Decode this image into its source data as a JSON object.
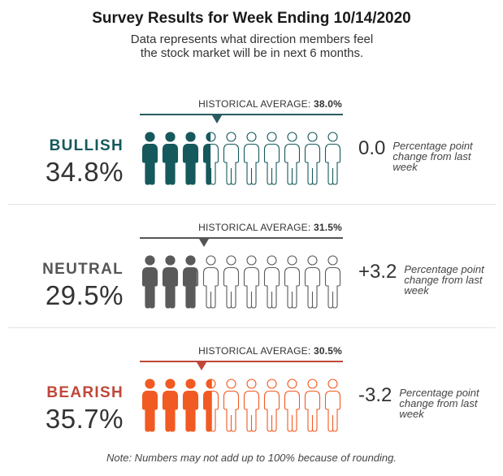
{
  "header": {
    "title": "Survey Results for Week Ending 10/14/2020",
    "subtitle": "Data represents what direction members feel the stock market will be in next 6 months."
  },
  "note": "Note: Numbers may not add up to 100% because of rounding.",
  "chart_data": {
    "type": "isotype",
    "icon": "person-icon",
    "icons_per_row": 10,
    "scale_max": 100,
    "rows": [
      {
        "category": "BULLISH",
        "value_label": "34.8%",
        "value": 34.8,
        "historical_label": "HISTORICAL AVERAGE:",
        "historical_value_label": "38.0%",
        "historical": 38.0,
        "change_label": "0.0",
        "change": 0.0,
        "change_desc": "Percentage point change from last week",
        "color": "#16595c"
      },
      {
        "category": "NEUTRAL",
        "value_label": "29.5%",
        "value": 29.5,
        "historical_label": "HISTORICAL AVERAGE:",
        "historical_value_label": "31.5%",
        "historical": 31.5,
        "change_label": "+3.2",
        "change": 3.2,
        "change_desc": "Percentage point change from last week",
        "color": "#5a5a5a"
      },
      {
        "category": "BEARISH",
        "value_label": "35.7%",
        "value": 35.7,
        "historical_label": "HISTORICAL AVERAGE:",
        "historical_value_label": "30.5%",
        "historical": 30.5,
        "change_label": "-3.2",
        "change": -3.2,
        "change_desc": "Percentage point change from last week",
        "color": "#f15a22"
      }
    ],
    "line_colors": [
      "#2a5c60",
      "#555555",
      "#c0473a"
    ],
    "label_colors": [
      "#16595c",
      "#555555",
      "#c0473a"
    ]
  }
}
